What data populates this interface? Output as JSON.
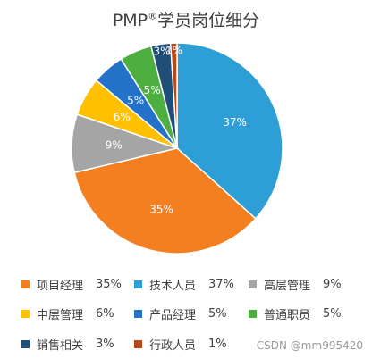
{
  "chart_data": {
    "type": "pie",
    "title": "PMP",
    "title_mark": "®",
    "title_suffix": "学员岗位细分",
    "start_angle_deg": 0,
    "direction": "clockwise",
    "legend_placement": "bottom",
    "slices": [
      {
        "label": "技术人员",
        "value": 37,
        "display": "37%",
        "color": "#2e9fd6"
      },
      {
        "label": "项目经理",
        "value": 35,
        "display": "35%",
        "color": "#f47f20"
      },
      {
        "label": "高层管理",
        "value": 9,
        "display": "9%",
        "color": "#a5a5a5"
      },
      {
        "label": "中层管理",
        "value": 6,
        "display": "6%",
        "color": "#ffc000"
      },
      {
        "label": "产品经理",
        "value": 5,
        "display": "5%",
        "color": "#2471c9"
      },
      {
        "label": "普通职员",
        "value": 5,
        "display": "5%",
        "color": "#4caf40"
      },
      {
        "label": "销售相关",
        "value": 3,
        "display": "3%",
        "color": "#1f4e79"
      },
      {
        "label": "行政人员",
        "value": 1,
        "display": "1%",
        "color": "#b8471a"
      }
    ],
    "legend_order": [
      "项目经理",
      "技术人员",
      "高层管理",
      "中层管理",
      "产品经理",
      "普通职员",
      "销售相关",
      "行政人员"
    ]
  },
  "watermark": "CSDN @mm995420"
}
